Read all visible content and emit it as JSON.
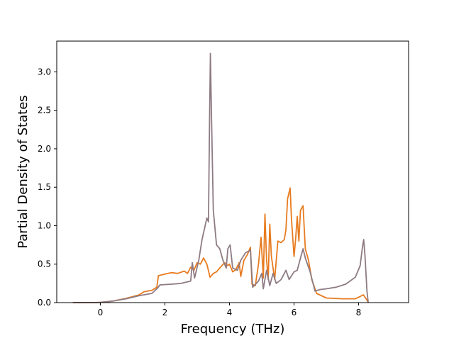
{
  "chart_data": {
    "type": "line",
    "title": "",
    "xlabel": "Frequency (THz)",
    "ylabel": "Partial Density of States",
    "xlim": [
      -1.35,
      9.55
    ],
    "ylim": [
      0,
      3.4
    ],
    "xticks": [
      0,
      2,
      4,
      6,
      8
    ],
    "xtick_labels": [
      "0",
      "2",
      "4",
      "6",
      "8"
    ],
    "yticks": [
      0.0,
      0.5,
      1.0,
      1.5,
      2.0,
      2.5,
      3.0
    ],
    "ytick_labels": [
      "0.0",
      "0.5",
      "1.0",
      "1.5",
      "2.0",
      "2.5",
      "3.0"
    ],
    "grid": false,
    "legend": "none",
    "series": [
      {
        "color": "#e87b1f",
        "points": [
          [
            -0.85,
            0
          ],
          [
            -0.2,
            0
          ],
          [
            0,
            0.003
          ],
          [
            0.4,
            0.02
          ],
          [
            0.8,
            0.055
          ],
          [
            1.2,
            0.1
          ],
          [
            1.35,
            0.14
          ],
          [
            1.6,
            0.16
          ],
          [
            1.75,
            0.2
          ],
          [
            1.8,
            0.35
          ],
          [
            2.0,
            0.37
          ],
          [
            2.2,
            0.39
          ],
          [
            2.4,
            0.38
          ],
          [
            2.6,
            0.41
          ],
          [
            2.7,
            0.38
          ],
          [
            2.8,
            0.46
          ],
          [
            2.9,
            0.42
          ],
          [
            3.0,
            0.52
          ],
          [
            3.1,
            0.5
          ],
          [
            3.2,
            0.58
          ],
          [
            3.3,
            0.5
          ],
          [
            3.4,
            0.33
          ],
          [
            3.5,
            0.38
          ],
          [
            3.6,
            0.4
          ],
          [
            3.7,
            0.45
          ],
          [
            3.85,
            0.52
          ],
          [
            3.95,
            0.48
          ],
          [
            4.0,
            0.5
          ],
          [
            4.1,
            0.4
          ],
          [
            4.2,
            0.43
          ],
          [
            4.3,
            0.52
          ],
          [
            4.35,
            0.34
          ],
          [
            4.45,
            0.55
          ],
          [
            4.55,
            0.62
          ],
          [
            4.65,
            0.72
          ],
          [
            4.7,
            0.24
          ],
          [
            4.8,
            0.22
          ],
          [
            4.9,
            0.5
          ],
          [
            4.98,
            0.85
          ],
          [
            5.05,
            0.32
          ],
          [
            5.1,
            1.15
          ],
          [
            5.15,
            0.55
          ],
          [
            5.2,
            0.3
          ],
          [
            5.25,
            1.02
          ],
          [
            5.3,
            0.6
          ],
          [
            5.4,
            0.3
          ],
          [
            5.5,
            0.8
          ],
          [
            5.6,
            0.78
          ],
          [
            5.7,
            0.82
          ],
          [
            5.75,
            0.95
          ],
          [
            5.8,
            1.35
          ],
          [
            5.88,
            1.49
          ],
          [
            5.92,
            1.1
          ],
          [
            6.0,
            0.6
          ],
          [
            6.05,
            0.82
          ],
          [
            6.1,
            1.12
          ],
          [
            6.15,
            0.8
          ],
          [
            6.2,
            1.2
          ],
          [
            6.28,
            1.26
          ],
          [
            6.35,
            0.7
          ],
          [
            6.45,
            0.55
          ],
          [
            6.55,
            0.3
          ],
          [
            6.7,
            0.12
          ],
          [
            7.0,
            0.06
          ],
          [
            7.5,
            0.05
          ],
          [
            7.9,
            0.05
          ],
          [
            8.15,
            0.1
          ],
          [
            8.25,
            0.04
          ],
          [
            8.3,
            0
          ]
        ]
      },
      {
        "color": "#8e7b84",
        "points": [
          [
            -0.85,
            0
          ],
          [
            -0.2,
            0
          ],
          [
            0,
            0.003
          ],
          [
            0.4,
            0.02
          ],
          [
            0.8,
            0.05
          ],
          [
            1.2,
            0.09
          ],
          [
            1.6,
            0.12
          ],
          [
            1.75,
            0.18
          ],
          [
            1.85,
            0.23
          ],
          [
            2.2,
            0.24
          ],
          [
            2.5,
            0.25
          ],
          [
            2.8,
            0.28
          ],
          [
            2.85,
            0.52
          ],
          [
            2.92,
            0.32
          ],
          [
            3.05,
            0.55
          ],
          [
            3.15,
            0.82
          ],
          [
            3.22,
            0.95
          ],
          [
            3.3,
            1.1
          ],
          [
            3.35,
            1.05
          ],
          [
            3.38,
            2.2
          ],
          [
            3.41,
            3.24
          ],
          [
            3.44,
            2.5
          ],
          [
            3.5,
            1.2
          ],
          [
            3.6,
            0.75
          ],
          [
            3.7,
            0.7
          ],
          [
            3.8,
            0.55
          ],
          [
            3.9,
            0.45
          ],
          [
            3.95,
            0.7
          ],
          [
            4.02,
            0.75
          ],
          [
            4.1,
            0.45
          ],
          [
            4.25,
            0.42
          ],
          [
            4.35,
            0.55
          ],
          [
            4.5,
            0.65
          ],
          [
            4.65,
            0.68
          ],
          [
            4.72,
            0.2
          ],
          [
            4.9,
            0.28
          ],
          [
            5.0,
            0.38
          ],
          [
            5.05,
            0.18
          ],
          [
            5.15,
            0.42
          ],
          [
            5.25,
            0.22
          ],
          [
            5.35,
            0.38
          ],
          [
            5.45,
            0.25
          ],
          [
            5.6,
            0.3
          ],
          [
            5.75,
            0.42
          ],
          [
            5.85,
            0.3
          ],
          [
            6.0,
            0.4
          ],
          [
            6.1,
            0.42
          ],
          [
            6.2,
            0.58
          ],
          [
            6.28,
            0.7
          ],
          [
            6.35,
            0.58
          ],
          [
            6.5,
            0.4
          ],
          [
            6.65,
            0.15
          ],
          [
            6.8,
            0.17
          ],
          [
            7.0,
            0.18
          ],
          [
            7.3,
            0.2
          ],
          [
            7.6,
            0.24
          ],
          [
            7.9,
            0.33
          ],
          [
            8.05,
            0.48
          ],
          [
            8.12,
            0.72
          ],
          [
            8.16,
            0.82
          ],
          [
            8.2,
            0.6
          ],
          [
            8.26,
            0.15
          ],
          [
            8.3,
            0
          ]
        ]
      }
    ]
  }
}
